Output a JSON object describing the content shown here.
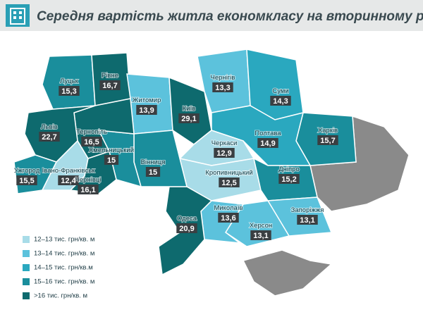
{
  "title": "Середня вартість житла економкласу на вторинному ринку",
  "regions": [
    {
      "name": "Луцьк",
      "value": "15,3",
      "color": "#1a8e9c"
    },
    {
      "name": "Рівне",
      "value": "16,7",
      "color": "#0e6a6e"
    },
    {
      "name": "Житомир",
      "value": "13,9",
      "color": "#5cc2dc"
    },
    {
      "name": "Київ",
      "value": "29,1",
      "color": "#0e6a6e"
    },
    {
      "name": "Чернігів",
      "value": "13,3",
      "color": "#5cc2dc"
    },
    {
      "name": "Суми",
      "value": "14,3",
      "color": "#2aa8bf"
    },
    {
      "name": "Харків",
      "value": "15,7",
      "color": "#1a8e9c"
    },
    {
      "name": "Полтава",
      "value": "14,9",
      "color": "#2aa8bf"
    },
    {
      "name": "Черкаси",
      "value": "12,9",
      "color": "#a8dce8"
    },
    {
      "name": "Кропивницький",
      "value": "12,5",
      "color": "#a8dce8"
    },
    {
      "name": "Дніпро",
      "value": "15,2",
      "color": "#1a8e9c"
    },
    {
      "name": "Запоріжжя",
      "value": "13,1",
      "color": "#5cc2dc"
    },
    {
      "name": "Херсон",
      "value": "13,1",
      "color": "#5cc2dc"
    },
    {
      "name": "Миколаїв",
      "value": "13,6",
      "color": "#5cc2dc"
    },
    {
      "name": "Одеса",
      "value": "20,9",
      "color": "#0e6a6e"
    },
    {
      "name": "Вінниця",
      "value": "15",
      "color": "#1a8e9c"
    },
    {
      "name": "Хмельницький",
      "value": "15",
      "color": "#1a8e9c"
    },
    {
      "name": "Тернопіль",
      "value": "16,5",
      "color": "#0e6a6e"
    },
    {
      "name": "Львів",
      "value": "22,7",
      "color": "#0e6a6e"
    },
    {
      "name": "Ужгород",
      "value": "15,5",
      "color": "#1a8e9c"
    },
    {
      "name": "Івано-Франківськ",
      "value": "12,4",
      "color": "#a8dce8"
    },
    {
      "name": "Чернівці",
      "value": "16,1",
      "color": "#0e6a6e"
    }
  ],
  "legend": [
    {
      "label": "12–13 тис. грн/кв. м",
      "color": "#a8dce8"
    },
    {
      "label": "13–14 тис. грн/кв. м",
      "color": "#5cc2dc"
    },
    {
      "label": "14–15 тис. грн/кв.м",
      "color": "#2aa8bf"
    },
    {
      "label": "15–16 тис. грн/кв. м",
      "color": "#1a8e9c"
    },
    {
      "label": ">16 тис. грн/кв. м",
      "color": "#0e6a6e"
    }
  ]
}
